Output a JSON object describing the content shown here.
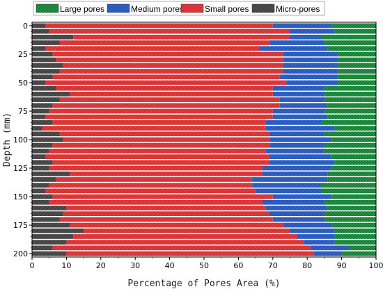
{
  "chart_data": {
    "type": "bar",
    "orientation": "horizontal",
    "stacked": true,
    "xlabel": "Percentage of Pores Area (%)",
    "ylabel": "Depth (mm)",
    "xlim": [
      0,
      100
    ],
    "ylim": [
      0,
      200
    ],
    "xticks": [
      "0",
      "10",
      "20",
      "30",
      "40",
      "50",
      "60",
      "70",
      "80",
      "90",
      "100"
    ],
    "yticks": [
      "0",
      "25",
      "50",
      "75",
      "100",
      "125",
      "150",
      "175",
      "200"
    ],
    "xtick_values": [
      0,
      10,
      20,
      30,
      40,
      50,
      60,
      70,
      80,
      90,
      100
    ],
    "ytick_values": [
      0,
      25,
      50,
      75,
      100,
      125,
      150,
      175,
      200
    ],
    "legend_position": "top",
    "grid": false,
    "depths": [
      0,
      5,
      10,
      15,
      20,
      25,
      30,
      35,
      40,
      45,
      50,
      55,
      60,
      65,
      70,
      75,
      80,
      85,
      90,
      95,
      100,
      105,
      110,
      115,
      120,
      125,
      130,
      135,
      140,
      145,
      150,
      155,
      160,
      165,
      170,
      175,
      180,
      185,
      190,
      195,
      200
    ],
    "series": [
      {
        "name": "Micro-pores",
        "color": "#4d4d4d",
        "values": [
          4,
          5,
          12,
          8,
          4,
          6,
          7,
          9,
          8,
          6,
          4,
          7,
          11,
          8,
          6,
          5,
          4,
          6,
          3,
          8,
          9,
          6,
          5,
          4,
          6,
          5,
          11,
          7,
          5,
          4,
          6,
          5,
          10,
          9,
          8,
          11,
          15,
          12,
          10,
          6,
          10
        ]
      },
      {
        "name": "Small pores",
        "color": "#e03a3a",
        "values": [
          66,
          70,
          63,
          61,
          62,
          67,
          66,
          64,
          65,
          66,
          70,
          63,
          59,
          64,
          66,
          65,
          66,
          62,
          65,
          61,
          60,
          63,
          63,
          65,
          63,
          62,
          56,
          57,
          59,
          61,
          64,
          62,
          58,
          60,
          62,
          62,
          60,
          65,
          69,
          75,
          72
        ]
      },
      {
        "name": "Medium pores",
        "color": "#2f62c8",
        "values": [
          17,
          13,
          9,
          16,
          20,
          16,
          16,
          16,
          16,
          17,
          15,
          15,
          15,
          13,
          14,
          15,
          16,
          16,
          20,
          16,
          18,
          16,
          17,
          18,
          19,
          20,
          19,
          22,
          20,
          19,
          17,
          18,
          18,
          16,
          15,
          14,
          13,
          11,
          9,
          11,
          8
        ]
      },
      {
        "name": "Large pores",
        "color": "#2aa24a",
        "values": [
          13,
          12,
          16,
          15,
          14,
          11,
          11,
          11,
          11,
          11,
          11,
          15,
          15,
          15,
          14,
          15,
          14,
          16,
          12,
          15,
          13,
          15,
          15,
          13,
          12,
          13,
          14,
          14,
          16,
          16,
          13,
          15,
          14,
          15,
          15,
          13,
          12,
          12,
          12,
          8,
          10
        ]
      }
    ]
  }
}
